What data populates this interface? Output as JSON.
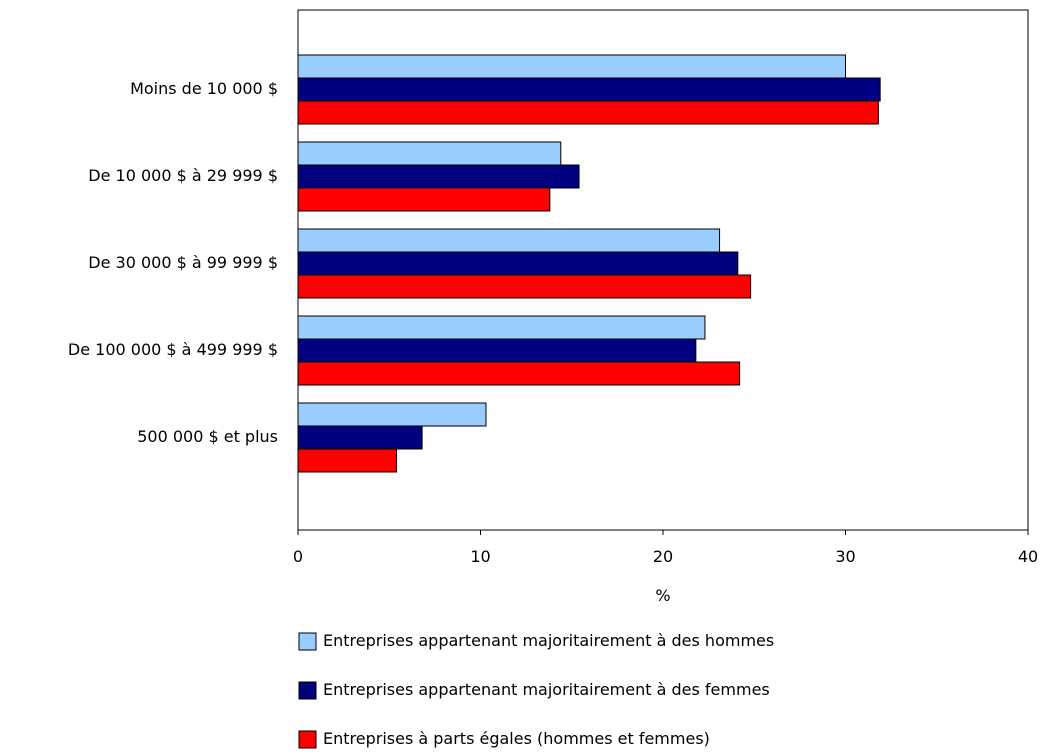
{
  "chart_data": {
    "type": "bar",
    "orientation": "horizontal",
    "categories": [
      "Moins de 10 000 $",
      "De 10 000 $ à 29 999 $",
      "De 30 000 $ à 99 999 $",
      "De 100 000 $ à 499 999 $",
      "500 000 $ et plus"
    ],
    "series": [
      {
        "name": "Entreprises appartenant majoritairement à des hommes",
        "color": "#99ccff",
        "values": [
          30.0,
          14.4,
          23.1,
          22.3,
          10.3
        ]
      },
      {
        "name": "Entreprises appartenant majoritairement à des femmes",
        "color": "#000080",
        "values": [
          31.9,
          15.4,
          24.1,
          21.8,
          6.8
        ]
      },
      {
        "name": "Entreprises à parts égales (hommes et femmes)",
        "color": "#ff0000",
        "values": [
          31.8,
          13.8,
          24.8,
          24.2,
          5.4
        ]
      }
    ],
    "title": "",
    "xlabel": "%",
    "ylabel": "",
    "xlim": [
      0,
      40
    ],
    "xticks": [
      "0",
      "10",
      "20",
      "30",
      "40"
    ],
    "grid": false,
    "legend": "bottom"
  }
}
